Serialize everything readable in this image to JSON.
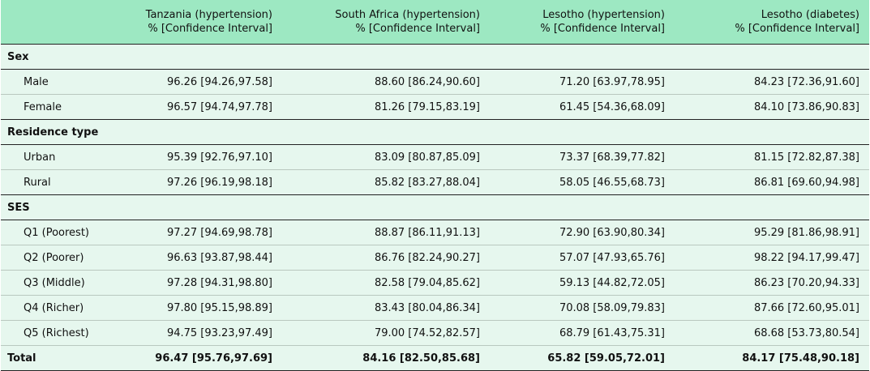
{
  "header": {
    "columns": [
      {
        "line1": "Tanzania (hypertension)",
        "line2": "% [Confidence Interval]"
      },
      {
        "line1": "South Africa (hypertension)",
        "line2": "% [Confidence Interval]"
      },
      {
        "line1": "Lesotho (hypertension)",
        "line2": "% [Confidence Interval]"
      },
      {
        "line1": "Lesotho (diabetes)",
        "line2": "% [Confidence Interval]"
      }
    ]
  },
  "sections": {
    "sex": "Sex",
    "residence": "Residence type",
    "ses": "SES"
  },
  "rows": {
    "male": {
      "label": "Male",
      "values": [
        "96.26 [94.26,97.58]",
        "88.60 [86.24,90.60]",
        "71.20 [63.97,78.95]",
        "84.23 [72.36,91.60]"
      ]
    },
    "female": {
      "label": "Female",
      "values": [
        "96.57 [94.74,97.78]",
        "81.26 [79.15,83.19]",
        "61.45 [54.36,68.09]",
        "84.10 [73.86,90.83]"
      ]
    },
    "urban": {
      "label": "Urban",
      "values": [
        "95.39 [92.76,97.10]",
        "83.09 [80.87,85.09]",
        "73.37 [68.39,77.82]",
        "81.15 [72.82,87.38]"
      ]
    },
    "rural": {
      "label": "Rural",
      "values": [
        "97.26 [96.19,98.18]",
        "85.82 [83.27,88.04]",
        "58.05 [46.55,68.73]",
        "86.81 [69.60,94.98]"
      ]
    },
    "q1": {
      "label": "Q1 (Poorest)",
      "values": [
        "97.27 [94.69,98.78]",
        "88.87 [86.11,91.13]",
        "72.90 [63.90,80.34]",
        "95.29 [81.86,98.91]"
      ]
    },
    "q2": {
      "label": "Q2 (Poorer)",
      "values": [
        "96.63 [93.87,98.44]",
        "86.76 [82.24,90.27]",
        "57.07 [47.93,65.76]",
        "98.22 [94.17,99.47]"
      ]
    },
    "q3": {
      "label": "Q3 (Middle)",
      "values": [
        "97.28 [94.31,98.80]",
        "82.58 [79.04,85.62]",
        "59.13 [44.82,72.05]",
        "86.23 [70.20,94.33]"
      ]
    },
    "q4": {
      "label": "Q4 (Richer)",
      "values": [
        "97.80 [95.15,98.89]",
        "83.43 [80.04,86.34]",
        "70.08 [58.09,79.83]",
        "87.66 [72.60,95.01]"
      ]
    },
    "q5": {
      "label": "Q5 (Richest)",
      "values": [
        "94.75 [93.23,97.49]",
        "79.00 [74.52,82.57]",
        "68.79 [61.43,75.31]",
        "68.68 [53.73,80.54]"
      ]
    },
    "total": {
      "label": "Total",
      "values": [
        "96.47 [95.76,97.69]",
        "84.16 [82.50,85.68]",
        "65.82 [59.05,72.01]",
        "84.17 [75.48,90.18]"
      ]
    }
  }
}
